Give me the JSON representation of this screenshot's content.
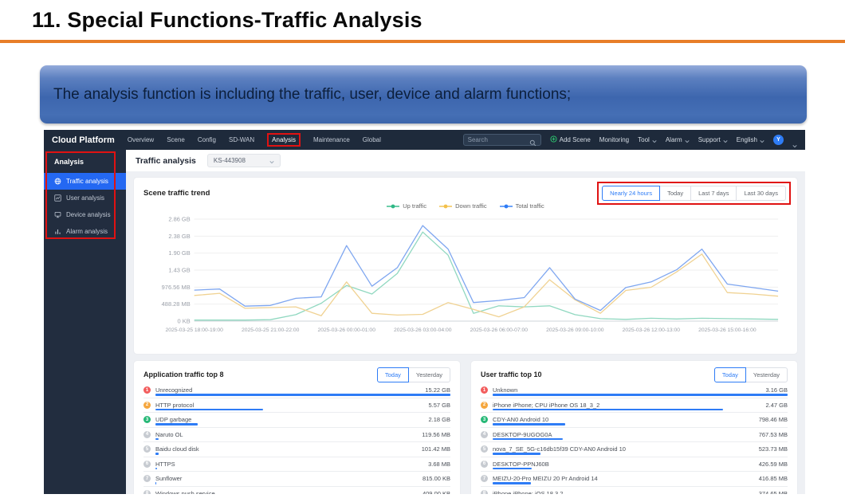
{
  "slide": {
    "title": "11. Special Functions-Traffic Analysis",
    "banner_text": "The analysis function is including the traffic, user,  device and alarm functions;"
  },
  "colors": {
    "accent_blue": "#2e7cf6",
    "annotation_red": "#e01212",
    "orange_rule": "#e87e28",
    "rank1": "#f25c5c",
    "rank2": "#f5a73f",
    "rank3": "#27b877",
    "rank_default": "#c7cbd1",
    "bar_blue": "#2e7cf6"
  },
  "navbar": {
    "brand": "Cloud Platform",
    "menu": [
      {
        "label": "Overview"
      },
      {
        "label": "Scene"
      },
      {
        "label": "Config"
      },
      {
        "label": "SD-WAN"
      },
      {
        "label": "Analysis",
        "highlighted": true
      },
      {
        "label": "Maintenance"
      },
      {
        "label": "Global"
      }
    ],
    "search_placeholder": "Search",
    "right": [
      {
        "label": "Add Scene",
        "icon": "plus-circle-icon"
      },
      {
        "label": "Monitoring"
      },
      {
        "label": "Tool",
        "chevron": true
      },
      {
        "label": "Alarm",
        "chevron": true
      },
      {
        "label": "Support",
        "chevron": true
      },
      {
        "label": "English",
        "chevron": true
      }
    ],
    "avatar_initial": "Y"
  },
  "sidebar": {
    "header": "Analysis",
    "items": [
      {
        "label": "Traffic analysis",
        "icon": "globe-icon",
        "selected": true
      },
      {
        "label": "User analysis",
        "icon": "line-chart-icon"
      },
      {
        "label": "Device analysis",
        "icon": "device-icon"
      },
      {
        "label": "Alarm analysis",
        "icon": "bar-chart-icon"
      }
    ]
  },
  "page": {
    "title": "Traffic analysis",
    "scene_selector_value": "KS-443908"
  },
  "trend": {
    "title": "Scene traffic trend",
    "ranges": [
      "Nearly 24 hours",
      "Today",
      "Last 7 days",
      "Last 30 days"
    ],
    "selected_range": "Nearly 24 hours"
  },
  "chart_data": {
    "type": "line",
    "title": "Scene traffic trend",
    "ylabel": "traffic",
    "unit": "GB",
    "grid": true,
    "legend_position": "top",
    "y_ticks": [
      "2.86 GB",
      "2.38 GB",
      "1.90 GB",
      "1.43 GB",
      "976.56 MB",
      "488.28 MB",
      "0 KB"
    ],
    "y_max_gb": 2.8611,
    "points": 24,
    "x_tick_indices": [
      0,
      3,
      6,
      9,
      12,
      15,
      18,
      21
    ],
    "x_tick_labels": [
      "2025-03-25 18:00-19:00",
      "2025-03-25 21:00-22:00",
      "2025-03-26 00:00-01:00",
      "2025-03-26 03:00-04:00",
      "2025-03-26 06:00-07:00",
      "2025-03-26 09:00-10:00",
      "2025-03-26 12:00-13:00",
      "2025-03-26 15:00-16:00"
    ],
    "series": [
      {
        "name": "Up traffic",
        "color": "#2eb885",
        "line_color": "#90d8c0",
        "values_gb": [
          0.03,
          0.03,
          0.03,
          0.04,
          0.18,
          0.5,
          1.0,
          0.76,
          1.34,
          2.5,
          1.85,
          0.22,
          0.43,
          0.4,
          0.43,
          0.18,
          0.07,
          0.05,
          0.08,
          0.06,
          0.08,
          0.07,
          0.06,
          0.05
        ]
      },
      {
        "name": "Down traffic",
        "color": "#f3c04a",
        "line_color": "#f0d292",
        "values_gb": [
          0.72,
          0.78,
          0.36,
          0.38,
          0.4,
          0.15,
          1.1,
          0.22,
          0.17,
          0.19,
          0.52,
          0.33,
          0.12,
          0.4,
          1.16,
          0.6,
          0.22,
          0.86,
          0.95,
          1.38,
          1.88,
          0.8,
          0.76,
          0.7
        ]
      },
      {
        "name": "Total traffic",
        "color": "#2e7cf6",
        "line_color": "#7ea6f0",
        "values_gb": [
          0.87,
          0.9,
          0.42,
          0.44,
          0.64,
          0.68,
          2.12,
          0.98,
          1.5,
          2.68,
          2.02,
          0.52,
          0.58,
          0.66,
          1.5,
          0.62,
          0.3,
          0.94,
          1.1,
          1.44,
          2.02,
          1.04,
          0.94,
          0.84
        ]
      }
    ]
  },
  "app_top": {
    "title": "Application traffic top 8",
    "tabs": [
      "Today",
      "Yesterday"
    ],
    "selected_tab": "Today",
    "items": [
      {
        "rank": 1,
        "name": "Unrecognized",
        "value": "15.22 GB",
        "bar_pct": 100
      },
      {
        "rank": 2,
        "name": "HTTP protocol",
        "value": "5.57 GB",
        "bar_pct": 36.6
      },
      {
        "rank": 3,
        "name": "UDP garbage",
        "value": "2.18 GB",
        "bar_pct": 14.3
      },
      {
        "rank": 4,
        "name": "Naruto OL",
        "value": "119.56 MB",
        "bar_pct": 1.2
      },
      {
        "rank": 5,
        "name": "Baidu cloud disk",
        "value": "101.42 MB",
        "bar_pct": 1.0
      },
      {
        "rank": 6,
        "name": "HTTPS",
        "value": "3.68 MB",
        "bar_pct": 0.6
      },
      {
        "rank": 7,
        "name": "Sunflower",
        "value": "815.00 KB",
        "bar_pct": 0.4
      },
      {
        "rank": 8,
        "name": "Windows push service",
        "value": "409.00 KB",
        "bar_pct": 0.4
      }
    ]
  },
  "user_top": {
    "title": "User traffic top 10",
    "tabs": [
      "Today",
      "Yesterday"
    ],
    "selected_tab": "Today",
    "items": [
      {
        "rank": 1,
        "name": "Unknown",
        "value": "3.16 GB",
        "bar_pct": 100
      },
      {
        "rank": 2,
        "name": "iPhone iPhone; CPU iPhone OS 18_3_2",
        "value": "2.47 GB",
        "bar_pct": 78.2
      },
      {
        "rank": 3,
        "name": "CDY-AN0 Android 10",
        "value": "798.46 MB",
        "bar_pct": 24.7
      },
      {
        "rank": 4,
        "name": "DESKTOP-9UGOG0A",
        "value": "767.53 MB",
        "bar_pct": 23.7
      },
      {
        "rank": 5,
        "name": "nova_7_SE_5G-c16db15f39 CDY-AN0 Android 10",
        "value": "523.73 MB",
        "bar_pct": 16.2
      },
      {
        "rank": 6,
        "name": "DESKTOP-PPNJ60B",
        "value": "426.59 MB",
        "bar_pct": 13.2
      },
      {
        "rank": 7,
        "name": "MEIZU-20-Pro MEIZU 20 Pr Android 14",
        "value": "416.85 MB",
        "bar_pct": 12.9
      },
      {
        "rank": 8,
        "name": "iPhone iPhone; iOS 18.3.2",
        "value": "374.65 MB",
        "bar_pct": 11.6
      }
    ]
  }
}
